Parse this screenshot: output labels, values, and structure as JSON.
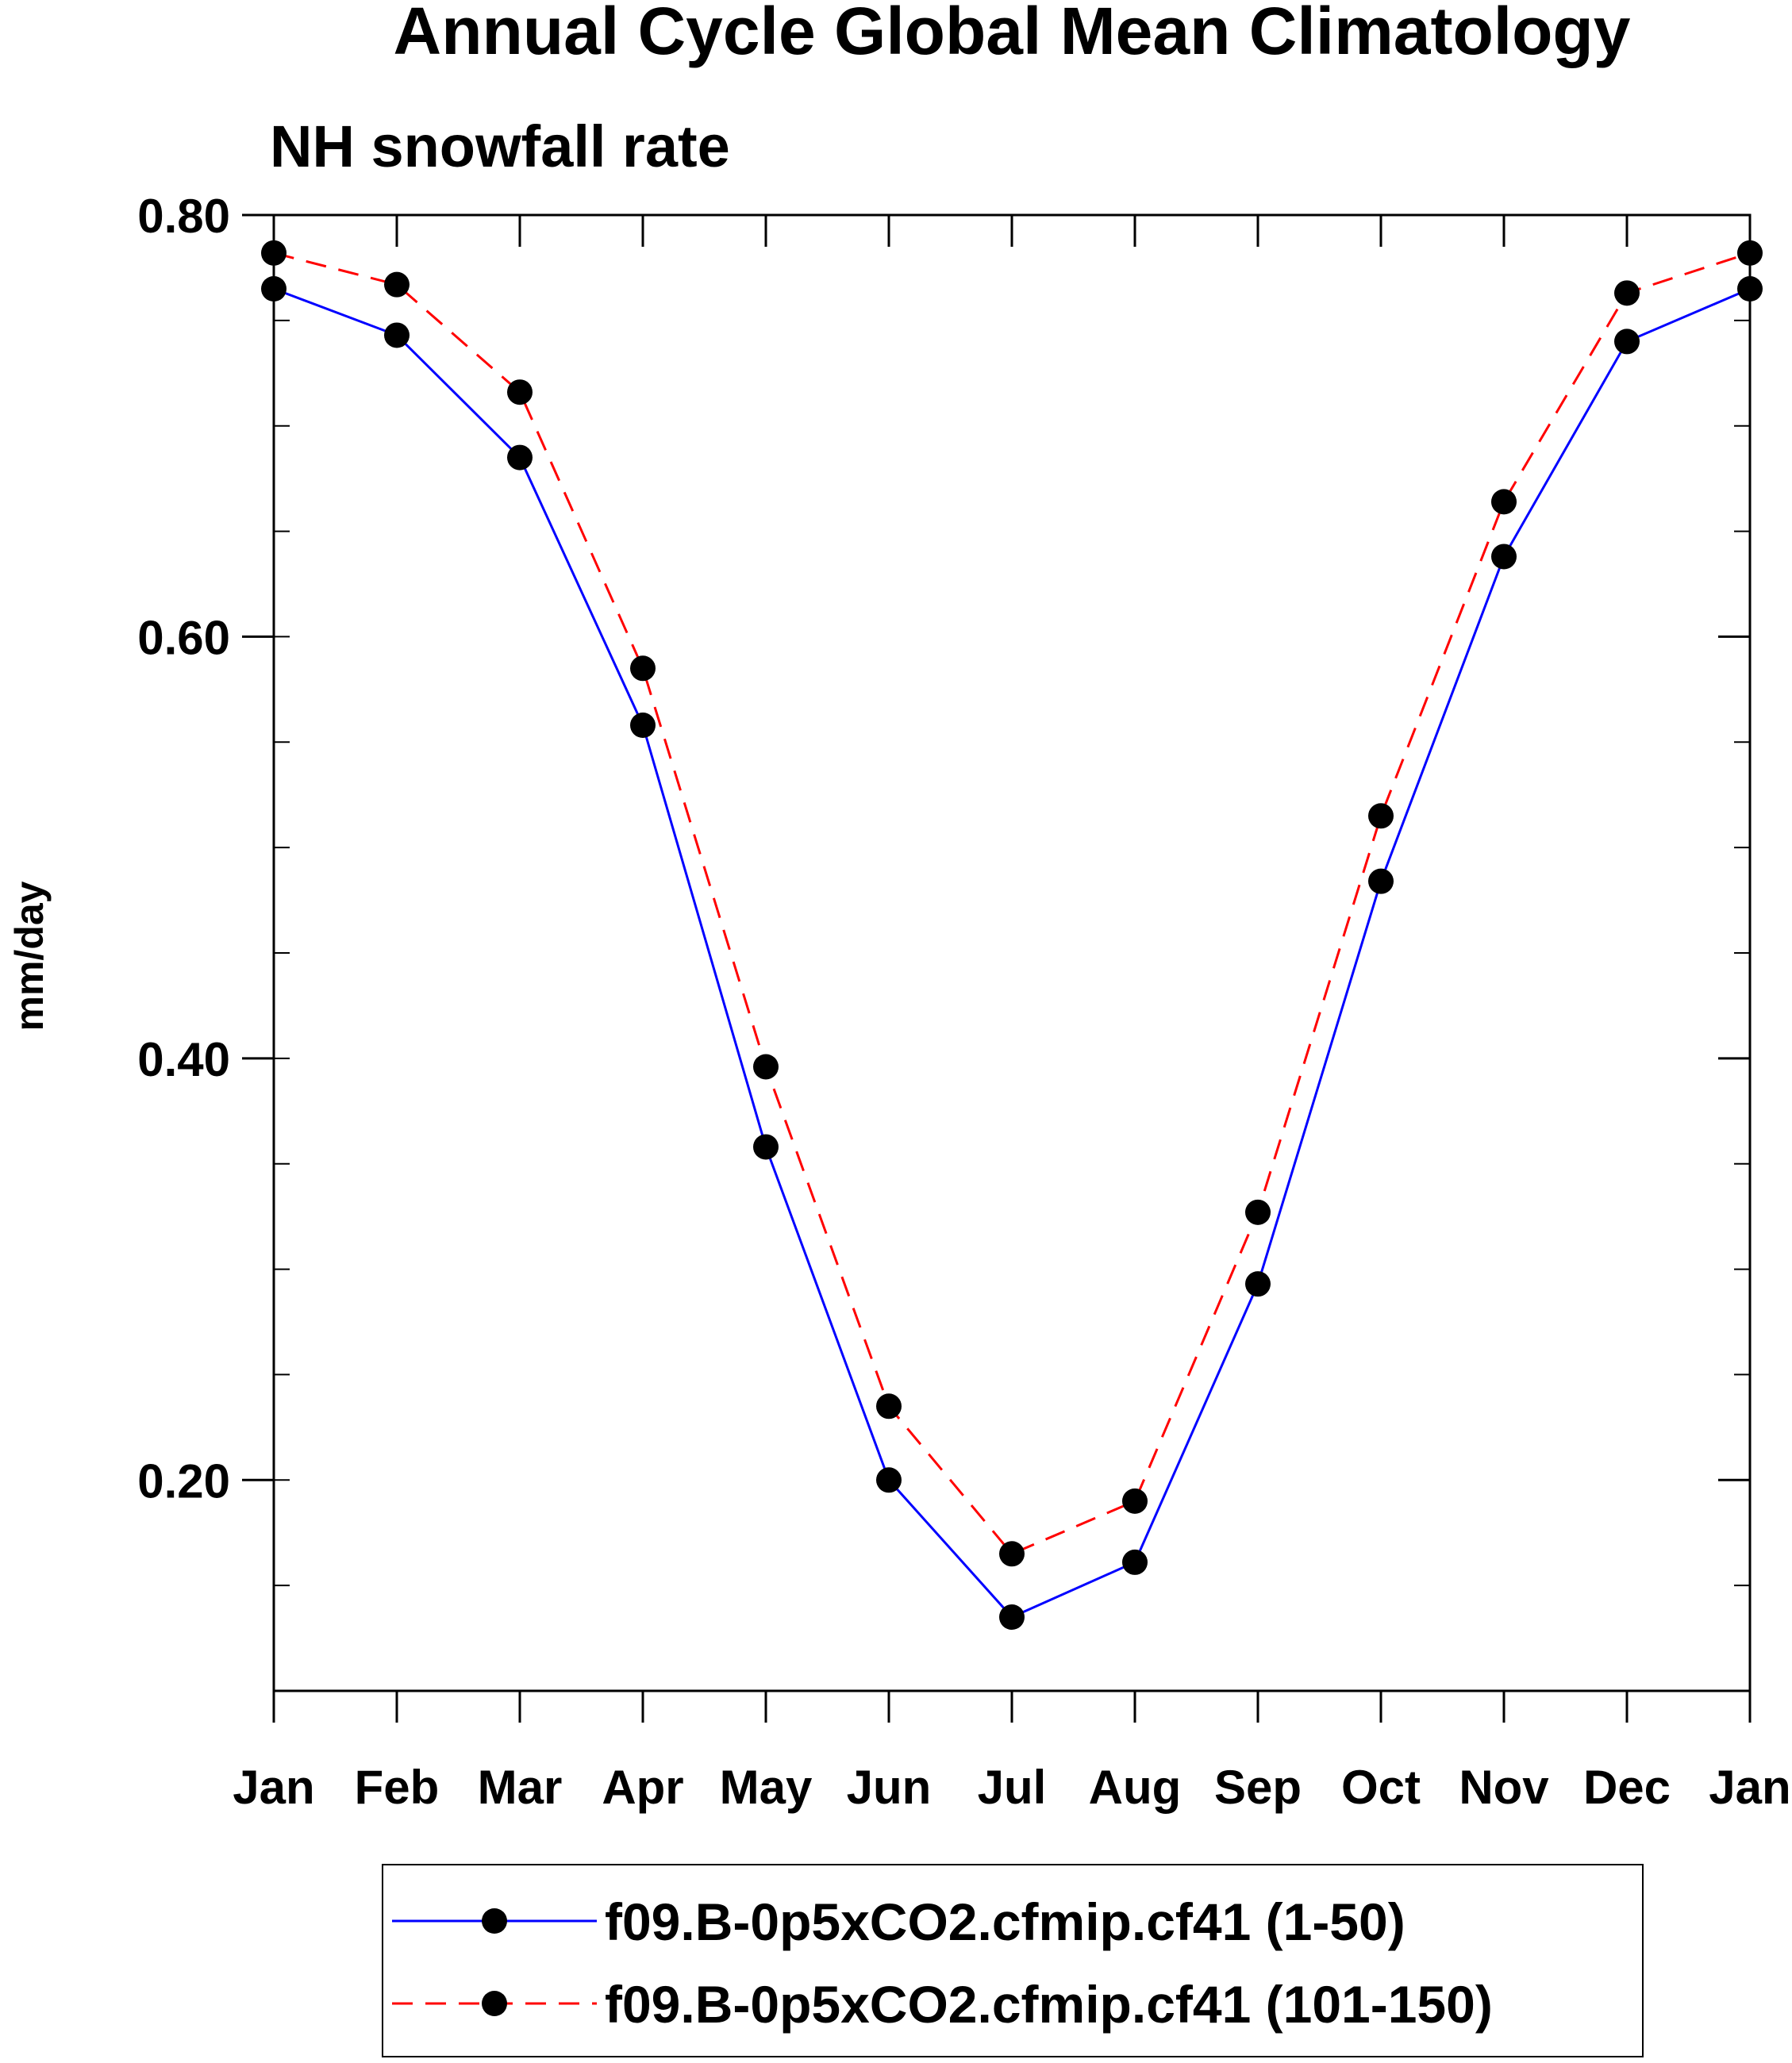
{
  "chart_data": {
    "type": "line",
    "title": "Annual Cycle Global Mean Climatology",
    "subtitle": "NH snowfall rate",
    "xlabel": "",
    "ylabel": "mm/day",
    "categories": [
      "Jan",
      "Feb",
      "Mar",
      "Apr",
      "May",
      "Jun",
      "Jul",
      "Aug",
      "Sep",
      "Oct",
      "Nov",
      "Dec",
      "Jan"
    ],
    "ylim": [
      0.1,
      0.8
    ],
    "yticks": [
      {
        "value": 0.2,
        "label": "0.20"
      },
      {
        "value": 0.4,
        "label": "0.40"
      },
      {
        "value": 0.6,
        "label": "0.60"
      },
      {
        "value": 0.8,
        "label": "0.80"
      }
    ],
    "yminor_step": 0.05,
    "grid": false,
    "legend_position": "bottom",
    "series": [
      {
        "name": "f09.B-0p5xCO2.cfmip.cf41 (1-50)",
        "color": "#0000ff",
        "line_style": "solid",
        "marker": "filled-circle",
        "values": [
          0.765,
          0.743,
          0.685,
          0.558,
          0.358,
          0.2,
          0.135,
          0.161,
          0.293,
          0.484,
          0.638,
          0.74,
          0.765
        ]
      },
      {
        "name": "f09.B-0p5xCO2.cfmip.cf41 (101-150)",
        "color": "#ff0000",
        "line_style": "dashed",
        "marker": "filled-circle",
        "values": [
          0.782,
          0.767,
          0.716,
          0.585,
          0.396,
          0.235,
          0.165,
          0.19,
          0.327,
          0.515,
          0.664,
          0.763,
          0.782
        ]
      }
    ]
  }
}
